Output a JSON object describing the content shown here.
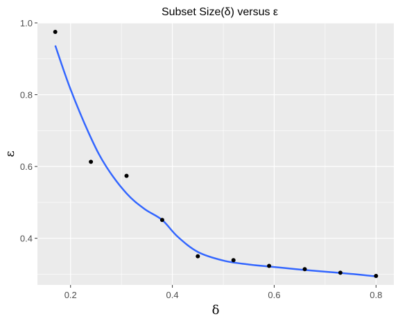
{
  "chart_data": {
    "type": "scatter",
    "title": "Subset Size(δ) versus ε",
    "xlabel": "δ",
    "ylabel": "ε",
    "xlim": [
      0.135,
      0.835
    ],
    "ylim": [
      0.27,
      1.0
    ],
    "x_ticks": [
      0.2,
      0.4,
      0.6,
      0.8
    ],
    "x_tick_labels": [
      "0.2",
      "0.4",
      "0.6",
      "0.8"
    ],
    "y_ticks": [
      0.4,
      0.6,
      0.8,
      1.0
    ],
    "y_tick_labels": [
      "0.4",
      "0.6",
      "0.8",
      "1.0"
    ],
    "grid": true,
    "points": {
      "x": [
        0.17,
        0.24,
        0.31,
        0.38,
        0.45,
        0.52,
        0.59,
        0.66,
        0.73,
        0.8
      ],
      "y": [
        0.975,
        0.613,
        0.574,
        0.451,
        0.35,
        0.339,
        0.323,
        0.314,
        0.304,
        0.295
      ]
    },
    "smooth_line": {
      "x": [
        0.17,
        0.2,
        0.24,
        0.27,
        0.31,
        0.345,
        0.38,
        0.41,
        0.45,
        0.5,
        0.55,
        0.6,
        0.65,
        0.7,
        0.75,
        0.8
      ],
      "y": [
        0.937,
        0.815,
        0.68,
        0.6,
        0.525,
        0.482,
        0.451,
        0.405,
        0.362,
        0.338,
        0.327,
        0.32,
        0.313,
        0.307,
        0.301,
        0.294
      ]
    },
    "colors": {
      "panel": "#ebebeb",
      "grid": "#ffffff",
      "points": "#000000",
      "line": "#3366ff"
    }
  }
}
